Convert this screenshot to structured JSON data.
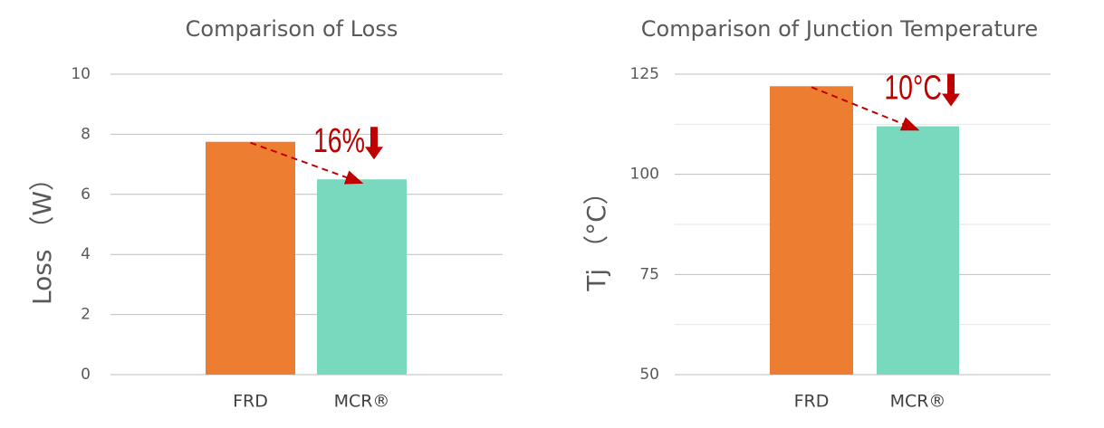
{
  "chart_data": [
    {
      "type": "bar",
      "title": "Comparison of Loss",
      "y_label": "Loss （W）",
      "categories": [
        "FRD",
        "MCR®"
      ],
      "values": [
        7.75,
        6.5
      ],
      "colors": [
        "#ED7D31",
        "#79D9BE"
      ],
      "ylim": [
        0,
        10
      ],
      "yticks": [
        0,
        2,
        4,
        6,
        8,
        10
      ],
      "grid": true,
      "annotation": "16%"
    },
    {
      "type": "bar",
      "title": "Comparison of Junction Temperature",
      "y_label": "Tj （°C）",
      "categories": [
        "FRD",
        "MCR®"
      ],
      "values": [
        122,
        112
      ],
      "colors": [
        "#ED7D31",
        "#79D9BE"
      ],
      "ylim": [
        50,
        125
      ],
      "yticks": [
        50,
        75,
        100,
        125
      ],
      "minor_yticks": [
        62.5,
        87.5,
        112.5
      ],
      "grid": true,
      "annotation": "10°C"
    }
  ]
}
